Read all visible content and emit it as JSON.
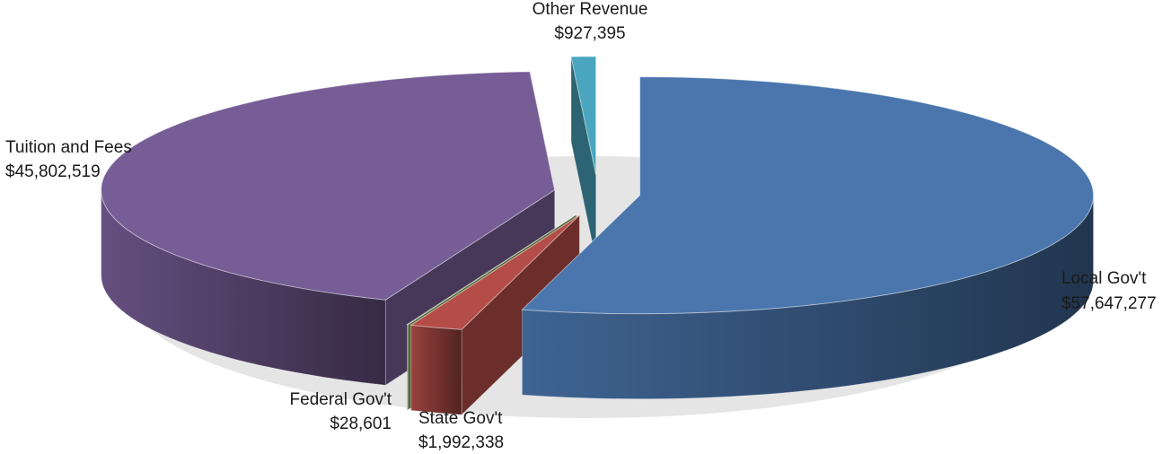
{
  "chart_data": {
    "type": "pie",
    "style": "3d-exploded",
    "title": "",
    "legend": "none",
    "slices": [
      {
        "label": "Local Gov't",
        "value_label": "$57,647,277",
        "value": 57647277,
        "color": "#4a76ad"
      },
      {
        "label": "State Gov't",
        "value_label": "$1,992,338",
        "value": 1992338,
        "color": "#b44d48"
      },
      {
        "label": "Federal Gov't",
        "value_label": "$28,601",
        "value": 28601,
        "color": "#8cae5b"
      },
      {
        "label": "Tuition and Fees",
        "value_label": "$45,802,519",
        "value": 45802519,
        "color": "#775d96"
      },
      {
        "label": "Other Revenue",
        "value_label": "$927,395",
        "value": 927395,
        "color": "#4aa6bf"
      }
    ]
  }
}
